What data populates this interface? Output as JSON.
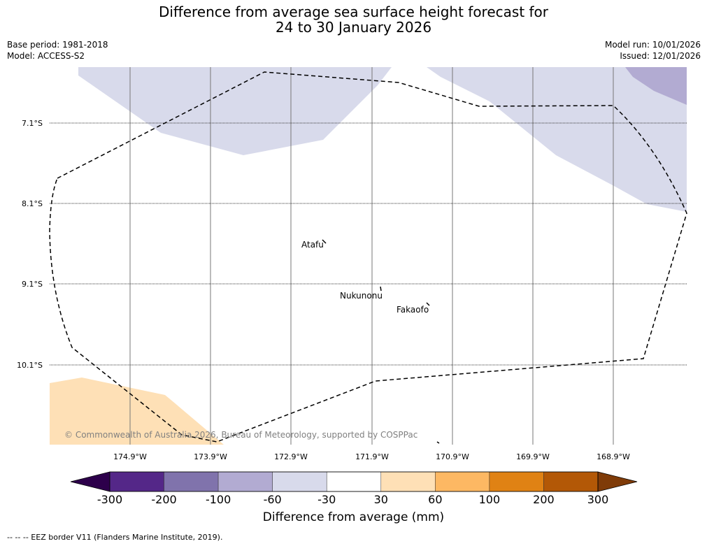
{
  "header": {
    "title_line1": "Difference from average sea surface height forecast for",
    "title_line2": "24 to 30 January 2026",
    "base_period": "Base period: 1981-2018",
    "model": "Model: ACCESS-S2",
    "model_run": "Model run: 10/01/2026",
    "issued": "Issued: 12/01/2026"
  },
  "map": {
    "lat_labels": [
      "7.1°S",
      "8.1°S",
      "9.1°S",
      "10.1°S"
    ],
    "lon_labels": [
      "174.9°W",
      "173.9°W",
      "172.9°W",
      "171.9°W",
      "170.9°W",
      "169.9°W",
      "168.9°W"
    ],
    "places": [
      {
        "name": "Atafu"
      },
      {
        "name": "Nukunonu"
      },
      {
        "name": "Fakaofo"
      }
    ],
    "copyright": "© Commonwealth of Australia 2026, Bureau of Meteorology, supported by COSPPac"
  },
  "colorbar": {
    "label": "Difference from average (mm)",
    "ticks": [
      "-300",
      "-200",
      "-100",
      "-60",
      "-30",
      "30",
      "60",
      "100",
      "200",
      "300"
    ],
    "colors": [
      "#2d004b",
      "#542788",
      "#8073ac",
      "#b2abd2",
      "#d8daeb",
      "#ffffff",
      "#fee0b6",
      "#fdb863",
      "#e08214",
      "#b35806",
      "#7f3b08"
    ]
  },
  "footer": {
    "legend_text": "--  --  -- EEZ border V11 (Flanders Marine Institute, 2019)."
  }
}
